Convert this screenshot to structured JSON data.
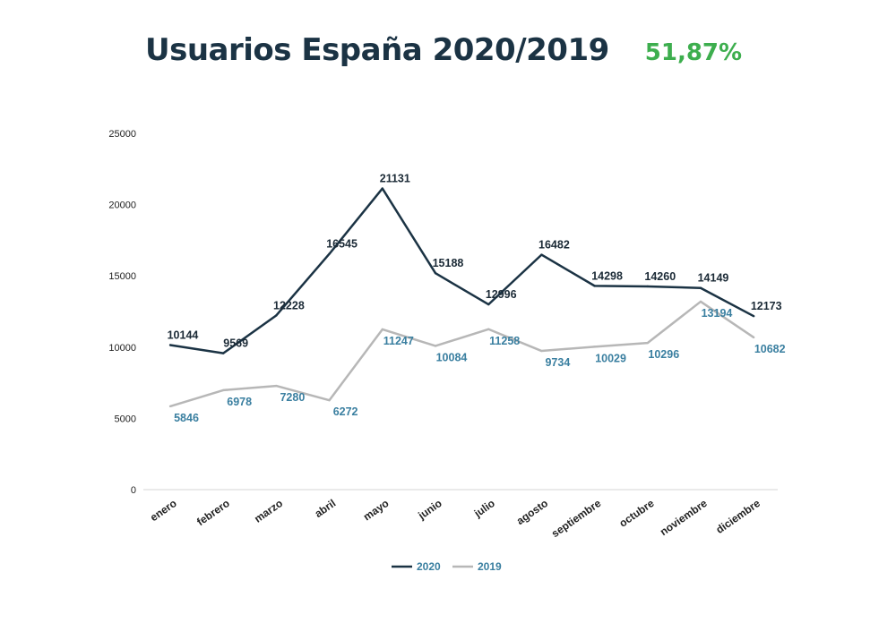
{
  "header": {
    "title": "Usuarios España  2020/2019",
    "percentage": "51,87%"
  },
  "colors": {
    "series_2020": "#1b3344",
    "series_2019": "#b7b7b7",
    "label_2019": "#3a7fa0",
    "percentage": "#3dae4e"
  },
  "chart_data": {
    "type": "line",
    "title": "Usuarios España  2020/2019",
    "categories": [
      "enero",
      "febrero",
      "marzo",
      "abril",
      "mayo",
      "junio",
      "julio",
      "agosto",
      "septiembre",
      "octubre",
      "noviembre",
      "diciembre"
    ],
    "series": [
      {
        "name": "2020",
        "values": [
          10144,
          9569,
          12228,
          16545,
          21131,
          15188,
          12996,
          16482,
          14298,
          14260,
          14149,
          12173
        ]
      },
      {
        "name": "2019",
        "values": [
          5846,
          6978,
          7280,
          6272,
          11247,
          10084,
          11258,
          9734,
          10029,
          10296,
          13194,
          10682
        ]
      }
    ],
    "ylim": [
      0,
      25000
    ],
    "yticks": [
      0,
      5000,
      10000,
      15000,
      20000,
      25000
    ],
    "xlabel": "",
    "ylabel": "",
    "grid": false,
    "legend": "bottom"
  }
}
